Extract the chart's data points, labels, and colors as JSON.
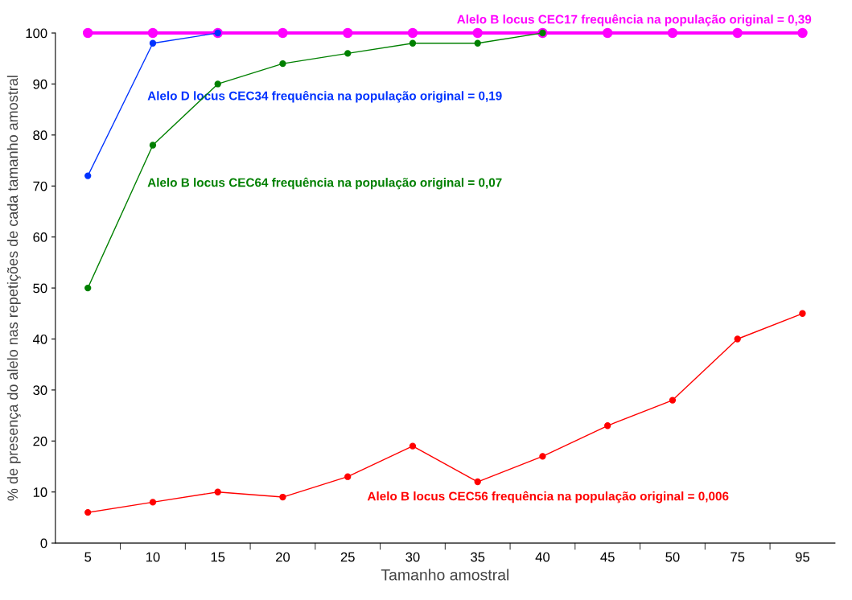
{
  "chart_data": {
    "type": "line",
    "xlabel": "Tamanho amostral",
    "ylabel": "% de presença do alelo nas repetições de cada tamanho amostral",
    "categories": [
      "5",
      "10",
      "15",
      "20",
      "25",
      "30",
      "35",
      "40",
      "45",
      "50",
      "75",
      "95"
    ],
    "ylim": [
      0,
      100
    ],
    "yticks": [
      0,
      10,
      20,
      30,
      40,
      50,
      60,
      70,
      80,
      90,
      100
    ],
    "grid": false,
    "legend": false,
    "marker": "circle",
    "line_style": "solid",
    "series": [
      {
        "name": "Alelo B locus CEC17 frequência na população original = 0,39",
        "color": "#ff00ff",
        "values": [
          100,
          100,
          100,
          100,
          100,
          100,
          100,
          100,
          100,
          100,
          100,
          100
        ]
      },
      {
        "name": "Alelo D locus CEC34 frequência na população original = 0,19",
        "color": "#0033ff",
        "values": [
          72,
          98,
          100,
          null,
          null,
          null,
          null,
          null,
          null,
          null,
          null,
          null
        ]
      },
      {
        "name": "Alelo B locus CEC64 frequência na população original = 0,07",
        "color": "#008000",
        "values": [
          50,
          78,
          90,
          94,
          96,
          98,
          98,
          100,
          null,
          null,
          null,
          null
        ]
      },
      {
        "name": "Alelo B locus CEC56 frequência na população original = 0,006",
        "color": "#ff0000",
        "values": [
          6,
          8,
          10,
          9,
          13,
          19,
          12,
          17,
          23,
          28,
          40,
          45
        ]
      }
    ]
  }
}
